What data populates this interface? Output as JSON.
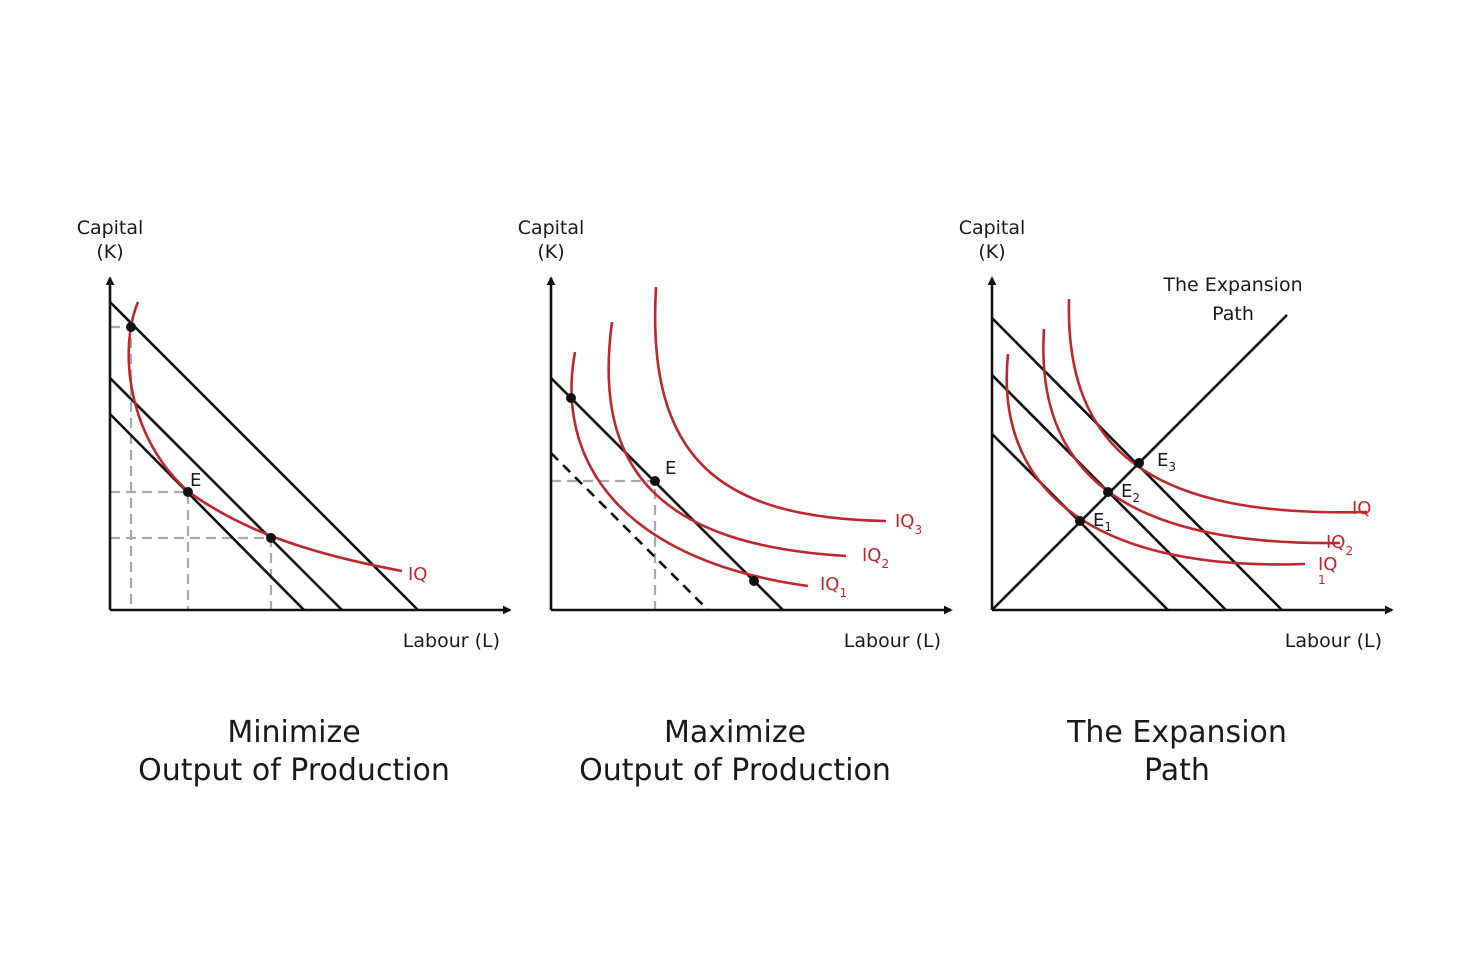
{
  "panels": [
    {
      "y_axis_title_line1": "Capital",
      "y_axis_title_line2": "(K)",
      "x_axis_title": "Labour (L)",
      "point_label": "E",
      "curve_label": "IQ",
      "caption_line1": "Minimize",
      "caption_line2": "Output of Production"
    },
    {
      "y_axis_title_line1": "Capital",
      "y_axis_title_line2": "(K)",
      "x_axis_title": "Labour (L)",
      "point_label": "E",
      "curve_labels": [
        {
          "base": "IQ",
          "sub": "1"
        },
        {
          "base": "IQ",
          "sub": "2"
        },
        {
          "base": "IQ",
          "sub": "3"
        }
      ],
      "caption_line1": "Maximize",
      "caption_line2": "Output of Production"
    },
    {
      "y_axis_title_line1": "Capital",
      "y_axis_title_line2": "(K)",
      "x_axis_title": "Labour (L)",
      "path_label_line1": "The Expansion",
      "path_label_line2": "Path",
      "point_labels": [
        {
          "base": "E",
          "sub": "1"
        },
        {
          "base": "E",
          "sub": "2"
        },
        {
          "base": "E",
          "sub": "3"
        }
      ],
      "curve_labels": [
        {
          "base": "IQ",
          "sub": "1"
        },
        {
          "base": "IQ",
          "sub": "2"
        },
        {
          "base": "IQ",
          "sub": ""
        }
      ],
      "caption_line1": "The Expansion",
      "caption_line2": "Path"
    }
  ],
  "colors": {
    "isoquant": "#c0272d",
    "budget_line": "#111111",
    "guide_line": "#aaaaaa"
  }
}
